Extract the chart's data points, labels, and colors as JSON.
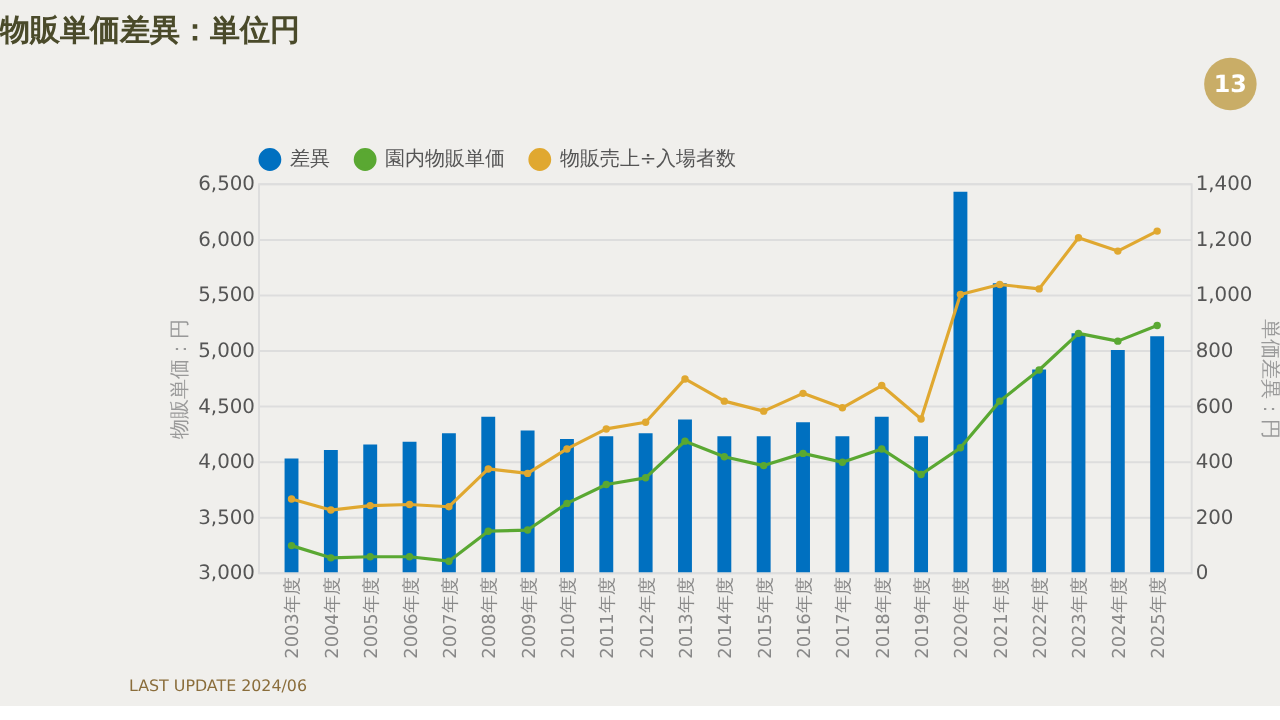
{
  "chart_data": {
    "type": "bar",
    "title": "物販単価差異：単位円",
    "categories": [
      "2003年度",
      "2004年度",
      "2005年度",
      "2006年度",
      "2007年度",
      "2008年度",
      "2009年度",
      "2010年度",
      "2011年度",
      "2012年度",
      "2013年度",
      "2014年度",
      "2015年度",
      "2016年度",
      "2017年度",
      "2018年度",
      "2019年度",
      "2020年度",
      "2021年度",
      "2022年度",
      "2023年度",
      "2024年度",
      "2025年度"
    ],
    "series": [
      {
        "name": "差異",
        "axis": "y2",
        "color": "#0070c0",
        "values": [
          410,
          440,
          460,
          470,
          500,
          560,
          510,
          480,
          490,
          500,
          550,
          490,
          490,
          540,
          490,
          560,
          490,
          1370,
          1040,
          730,
          860,
          800,
          850
        ]
      },
      {
        "name": "園内物販単価",
        "type": "line",
        "color": "#5aa832",
        "values": [
          3240,
          3130,
          3140,
          3140,
          3100,
          3370,
          3380,
          3620,
          3790,
          3850,
          4180,
          4040,
          3960,
          4070,
          3990,
          4110,
          3880,
          4120,
          4540,
          4820,
          5150,
          5080,
          5220
        ]
      },
      {
        "name": "物販売上÷入場者数",
        "type": "line",
        "color": "#e0a830",
        "values": [
          3660,
          3560,
          3600,
          3610,
          3590,
          3930,
          3890,
          4110,
          4290,
          4350,
          4740,
          4540,
          4450,
          4610,
          4480,
          4680,
          4380,
          5500,
          5590,
          5550,
          6010,
          5890,
          6070
        ]
      }
    ],
    "ylabel": "物販単価：円",
    "y2label": "単価差異：円",
    "ylim": [
      3000,
      6500
    ],
    "yticks": [
      {
        "value": 3000,
        "label": "3,000"
      },
      {
        "value": 3500,
        "label": "3,500"
      },
      {
        "value": 4000,
        "label": "4,000"
      },
      {
        "value": 4500,
        "label": "4,500"
      },
      {
        "value": 5000,
        "label": "5,000"
      },
      {
        "value": 5500,
        "label": "5,500"
      },
      {
        "value": 6000,
        "label": "6,000"
      },
      {
        "value": 6500,
        "label": "6,500"
      }
    ],
    "y2lim": [
      0,
      1400
    ],
    "y2ticks": [
      0,
      200,
      400,
      600,
      800,
      {
        "value": 1000,
        "label": "1,000"
      },
      {
        "value": 1200,
        "label": "1,200"
      },
      {
        "value": 1400,
        "label": "1,400"
      }
    ],
    "grid": "y",
    "legend": "top",
    "marker": "circle",
    "annotations": [
      "13",
      "LAST UPDATE 2024/06"
    ]
  }
}
